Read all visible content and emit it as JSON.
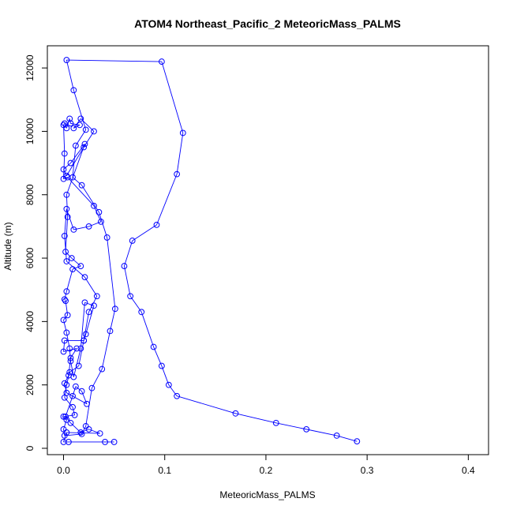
{
  "chart_data": {
    "type": "line",
    "title": "ATOM4 Northeast_Pacific_2 MeteoricMass_PALMS",
    "xlabel": "MeteoricMass_PALMS",
    "ylabel": "Altitude (m)",
    "xlim": [
      -0.016,
      0.42
    ],
    "ylim": [
      -200,
      12700
    ],
    "x_ticks": [
      0,
      0.1,
      0.2,
      0.3,
      0.4
    ],
    "x_tick_labels": [
      "0.0",
      "0.1",
      "0.2",
      "0.3",
      "0.4"
    ],
    "y_ticks": [
      0,
      2000,
      4000,
      6000,
      8000,
      10000,
      12000
    ],
    "y_tick_labels": [
      "0",
      "2000",
      "4000",
      "6000",
      "8000",
      "10000",
      "12000"
    ],
    "grid": false,
    "legend": "none",
    "marker": "open-circle",
    "color": "#0000ff",
    "series": [
      {
        "points": [
          [
            0.05,
            200
          ],
          [
            0.041,
            200
          ],
          [
            0.005,
            200
          ],
          [
            0.0,
            200
          ],
          [
            0.003,
            500
          ],
          [
            0.036,
            470
          ],
          [
            0.025,
            600
          ],
          [
            0.017,
            500
          ],
          [
            0.007,
            800
          ],
          [
            0.002,
            1000
          ],
          [
            0.009,
            1650
          ],
          [
            0.012,
            1950
          ],
          [
            0.018,
            1800
          ],
          [
            0.023,
            1400
          ],
          [
            0.003,
            1750
          ],
          [
            0.001,
            2050
          ],
          [
            0.005,
            2300
          ],
          [
            0.007,
            2850
          ],
          [
            0.013,
            3150
          ],
          [
            0.0,
            3050
          ],
          [
            0.001,
            3400
          ],
          [
            0.02,
            3400
          ],
          [
            0.025,
            4300
          ],
          [
            0.033,
            4800
          ],
          [
            0.021,
            5400
          ],
          [
            0.003,
            5900
          ],
          [
            0.001,
            6700
          ],
          [
            0.003,
            7550
          ],
          [
            0.01,
            6900
          ],
          [
            0.025,
            7000
          ],
          [
            0.037,
            7150
          ],
          [
            0.03,
            7650
          ],
          [
            0.004,
            8550
          ],
          [
            0.0,
            8500
          ],
          [
            0.001,
            9300
          ],
          [
            0.0,
            10200
          ],
          [
            0.001,
            10250
          ],
          [
            0.003,
            10100
          ],
          [
            0.006,
            10400
          ],
          [
            0.007,
            10250
          ],
          [
            0.016,
            10200
          ],
          [
            0.01,
            10100
          ],
          [
            0.017,
            10400
          ],
          [
            0.03,
            10000
          ],
          [
            0.02,
            9500
          ],
          [
            0.003,
            8600
          ],
          [
            0.0,
            8800
          ],
          [
            0.007,
            9000
          ],
          [
            0.021,
            9600
          ],
          [
            0.003,
            8000
          ],
          [
            0.004,
            7300
          ],
          [
            0.002,
            6200
          ],
          [
            0.008,
            6000
          ],
          [
            0.017,
            5750
          ],
          [
            0.009,
            5650
          ],
          [
            0.003,
            4950
          ],
          [
            0.001,
            4700
          ],
          [
            0.002,
            4650
          ],
          [
            0.004,
            4200
          ],
          [
            0.0,
            4050
          ],
          [
            0.003,
            3650
          ],
          [
            0.006,
            3150
          ],
          [
            0.007,
            2750
          ],
          [
            0.01,
            2250
          ],
          [
            0.017,
            3150
          ],
          [
            0.021,
            4600
          ],
          [
            0.03,
            4500
          ],
          [
            0.022,
            3600
          ],
          [
            0.02,
            3400
          ],
          [
            0.015,
            2600
          ],
          [
            0.006,
            2400
          ],
          [
            0.003,
            2000
          ],
          [
            0.001,
            1600
          ],
          [
            0.009,
            1300
          ],
          [
            0.011,
            1050
          ],
          [
            0.0,
            1000
          ],
          [
            0.003,
            900
          ],
          [
            0.0,
            600
          ],
          [
            0.001,
            400
          ],
          [
            0.018,
            450
          ],
          [
            0.022,
            700
          ],
          [
            0.028,
            1900
          ],
          [
            0.038,
            2500
          ],
          [
            0.046,
            3700
          ],
          [
            0.051,
            4400
          ],
          [
            0.043,
            6650
          ],
          [
            0.035,
            7450
          ],
          [
            0.018,
            8300
          ],
          [
            0.009,
            8550
          ],
          [
            0.012,
            9550
          ],
          [
            0.022,
            10050
          ],
          [
            0.01,
            11300
          ],
          [
            0.003,
            12250
          ],
          [
            0.097,
            12200
          ],
          [
            0.118,
            9950
          ],
          [
            0.112,
            8650
          ],
          [
            0.092,
            7050
          ],
          [
            0.068,
            6550
          ],
          [
            0.06,
            5750
          ],
          [
            0.066,
            4800
          ],
          [
            0.077,
            4300
          ],
          [
            0.089,
            3200
          ],
          [
            0.097,
            2600
          ],
          [
            0.104,
            2000
          ],
          [
            0.112,
            1650
          ],
          [
            0.17,
            1100
          ],
          [
            0.21,
            800
          ],
          [
            0.24,
            600
          ],
          [
            0.27,
            400
          ],
          [
            0.29,
            220
          ]
        ]
      }
    ]
  }
}
